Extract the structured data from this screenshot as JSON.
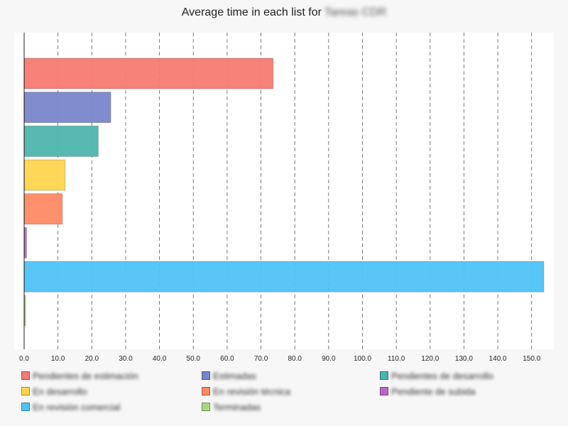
{
  "title": {
    "prefix": "Average time in each list for",
    "subject": "Tareas CDR"
  },
  "chart_data": {
    "type": "bar",
    "orientation": "horizontal",
    "title": "Average time in each list for Tareas CDR",
    "xlim": [
      0,
      153
    ],
    "x_ticks": [
      0,
      10,
      20,
      30,
      40,
      50,
      60,
      70,
      80,
      90,
      100,
      110,
      120,
      130,
      140,
      150
    ],
    "x_tick_labels": [
      "0.0",
      "10.0",
      "20.0",
      "30.0",
      "40.0",
      "50.0",
      "60.0",
      "70.0",
      "80.0",
      "90.0",
      "100.0",
      "110.0",
      "120.0",
      "130.0",
      "140.0",
      "150.0"
    ],
    "grid": "vertical dashed",
    "legend_position": "bottom",
    "series": [
      {
        "name": "Pendientes de estimación",
        "value": 73.5,
        "color": "#f77b72"
      },
      {
        "name": "Estimadas",
        "value": 25.5,
        "color": "#7986cb"
      },
      {
        "name": "Pendientes de desarrollo",
        "value": 21.8,
        "color": "#4db6ac"
      },
      {
        "name": "En desarrollo",
        "value": 12.0,
        "color": "#ffd54f"
      },
      {
        "name": "En revisión técnica",
        "value": 11.2,
        "color": "#ff8a65"
      },
      {
        "name": "Pendiente de subida",
        "value": 0.6,
        "color": "#ba68c8"
      },
      {
        "name": "En revisión comercial",
        "value": 153.5,
        "color": "#4fc3f7"
      },
      {
        "name": "Terminadas",
        "value": 0.2,
        "color": "#aed581"
      }
    ]
  }
}
